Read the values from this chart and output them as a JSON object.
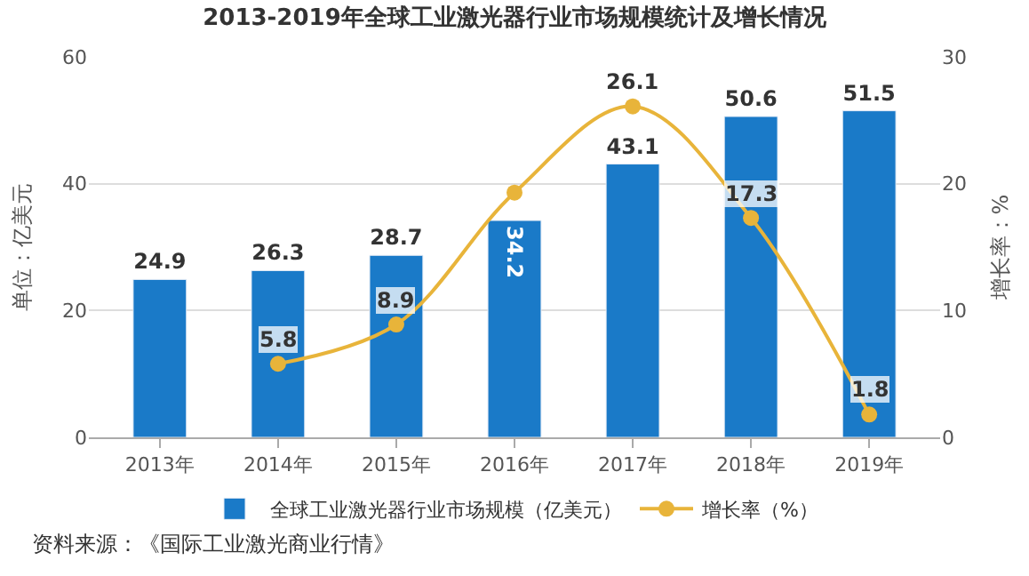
{
  "chart_data": {
    "type": "bar",
    "title": "2013-2019年全球工业激光器行业市场规模统计及增长情况",
    "categories": [
      "2013年",
      "2014年",
      "2015年",
      "2016年",
      "2017年",
      "2018年",
      "2019年"
    ],
    "series": [
      {
        "name": "全球工业激光器行业市场规模（亿美元）",
        "color": "#1a7ac8",
        "values": [
          24.9,
          26.3,
          28.7,
          34.2,
          43.1,
          50.6,
          51.5
        ],
        "value_labels": [
          "24.9",
          "26.3",
          "28.7",
          "34.2",
          "43.1",
          "50.6",
          "51.5"
        ]
      },
      {
        "name": "增长率（%）",
        "type": "line",
        "axis": "y2",
        "color": "#e8b43a",
        "values": [
          null,
          5.8,
          8.9,
          19.3,
          26.1,
          17.3,
          1.8
        ],
        "value_labels": [
          null,
          "5.8",
          "8.9",
          null,
          "26.1",
          "17.3",
          "1.8"
        ]
      }
    ],
    "ylabel": "单位：亿美元",
    "y2label": "增长率：%",
    "ylim": [
      0,
      60
    ],
    "yticks": [
      0,
      20,
      40,
      60
    ],
    "y2lim": [
      0,
      30
    ],
    "y2ticks": [
      0,
      10,
      20,
      30
    ],
    "grid": "y",
    "legend": "bottom",
    "marker": "circle",
    "annotations": [
      "资料来源：《国际工业激光商业行情》"
    ]
  }
}
